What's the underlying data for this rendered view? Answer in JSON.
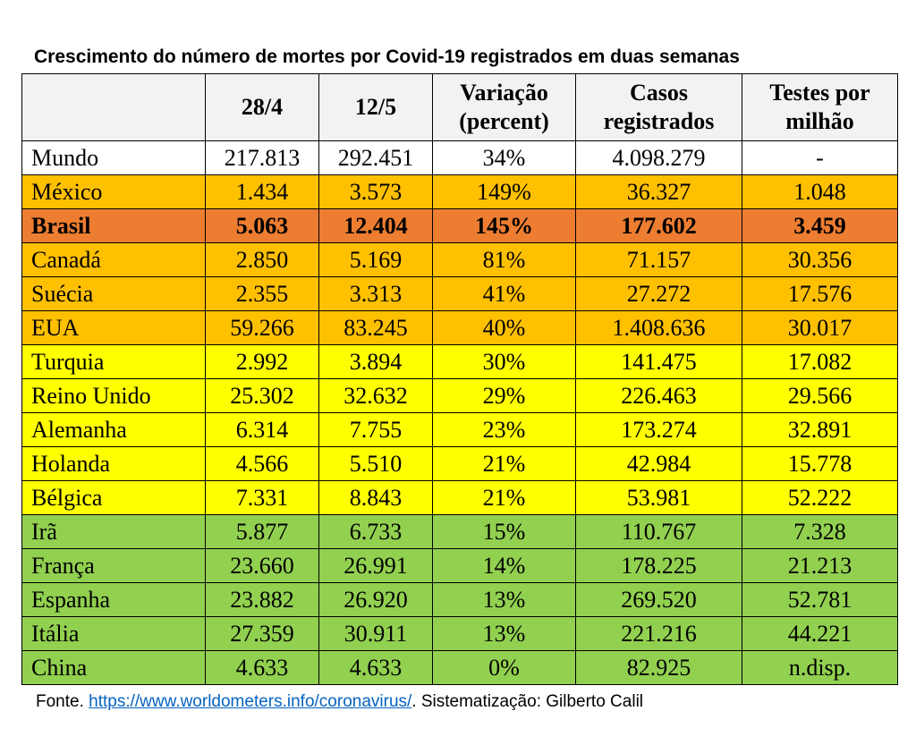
{
  "title": "Crescimento do número de mortes por Covid-19 registrados em duas semanas",
  "header": {
    "country": "",
    "d1": "28/4",
    "d2": "12/5",
    "variation_line1": "Variação",
    "variation_line2": "(percent)",
    "cases_line1": "Casos",
    "cases_line2": "registrados",
    "tests_line1": "Testes por",
    "tests_line2": "milhão"
  },
  "colors": {
    "white": "#ffffff",
    "orange": "#ffc000",
    "dark_orange": "#ed7d31",
    "yellow": "#ffff00",
    "green": "#92d050",
    "header": "#f2f2f2"
  },
  "rows": [
    {
      "country": "Mundo",
      "d1": "217.813",
      "d2": "292.451",
      "var": "34%",
      "cases": "4.098.279",
      "tests": "-",
      "group": "white"
    },
    {
      "country": "México",
      "d1": "1.434",
      "d2": "3.573",
      "var": "149%",
      "cases": "36.327",
      "tests": "1.048",
      "group": "orange"
    },
    {
      "country": "Brasil",
      "d1": "5.063",
      "d2": "12.404",
      "var": "145%",
      "cases": "177.602",
      "tests": "3.459",
      "group": "dark"
    },
    {
      "country": "Canadá",
      "d1": "2.850",
      "d2": "5.169",
      "var": "81%",
      "cases": "71.157",
      "tests": "30.356",
      "group": "orange"
    },
    {
      "country": "Suécia",
      "d1": "2.355",
      "d2": "3.313",
      "var": "41%",
      "cases": "27.272",
      "tests": "17.576",
      "group": "orange"
    },
    {
      "country": "EUA",
      "d1": "59.266",
      "d2": "83.245",
      "var": "40%",
      "cases": "1.408.636",
      "tests": "30.017",
      "group": "orange"
    },
    {
      "country": "Turquia",
      "d1": "2.992",
      "d2": "3.894",
      "var": "30%",
      "cases": "141.475",
      "tests": "17.082",
      "group": "yellow"
    },
    {
      "country": "Reino Unido",
      "d1": "25.302",
      "d2": "32.632",
      "var": "29%",
      "cases": "226.463",
      "tests": "29.566",
      "group": "yellow"
    },
    {
      "country": "Alemanha",
      "d1": "6.314",
      "d2": "7.755",
      "var": "23%",
      "cases": "173.274",
      "tests": "32.891",
      "group": "yellow"
    },
    {
      "country": "Holanda",
      "d1": "4.566",
      "d2": "5.510",
      "var": "21%",
      "cases": "42.984",
      "tests": "15.778",
      "group": "yellow"
    },
    {
      "country": "Bélgica",
      "d1": "7.331",
      "d2": "8.843",
      "var": "21%",
      "cases": "53.981",
      "tests": "52.222",
      "group": "yellow"
    },
    {
      "country": "Irã",
      "d1": "5.877",
      "d2": "6.733",
      "var": "15%",
      "cases": "110.767",
      "tests": "7.328",
      "group": "green"
    },
    {
      "country": "França",
      "d1": "23.660",
      "d2": "26.991",
      "var": "14%",
      "cases": "178.225",
      "tests": "21.213",
      "group": "green"
    },
    {
      "country": "Espanha",
      "d1": "23.882",
      "d2": "26.920",
      "var": "13%",
      "cases": "269.520",
      "tests": "52.781",
      "group": "green"
    },
    {
      "country": "Itália",
      "d1": "27.359",
      "d2": "30.911",
      "var": "13%",
      "cases": "221.216",
      "tests": "44.221",
      "group": "green"
    },
    {
      "country": "China",
      "d1": "4.633",
      "d2": "4.633",
      "var": "0%",
      "cases": "82.925",
      "tests": "n.disp.",
      "group": "green"
    }
  ],
  "source": {
    "prefix": "Fonte. ",
    "link_text": "https://www.worldometers.info/coronavirus/",
    "suffix": ". Sistematização: Gilberto Calil"
  }
}
